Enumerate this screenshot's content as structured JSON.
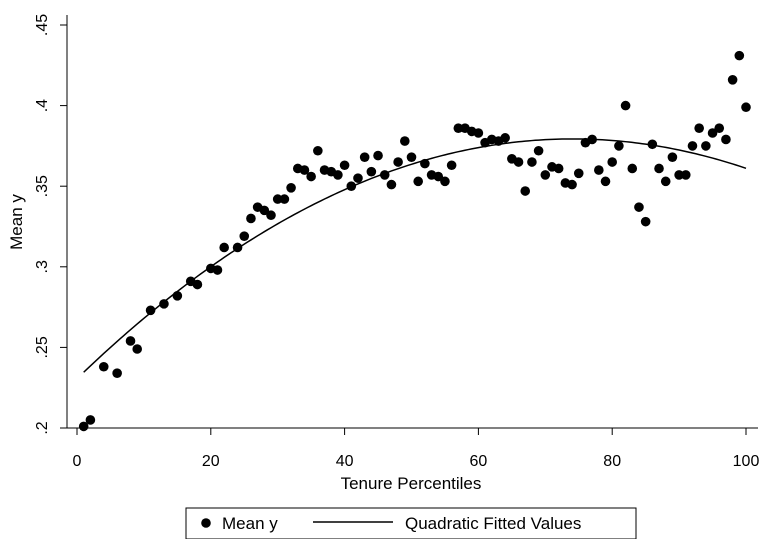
{
  "chart_data": {
    "type": "scatter",
    "xlabel": "Tenure Percentiles",
    "ylabel": "Mean y",
    "xlim": [
      0,
      100
    ],
    "ylim": [
      0.2,
      0.45
    ],
    "x_ticks": [
      {
        "value": 0,
        "label": "0"
      },
      {
        "value": 20,
        "label": "20"
      },
      {
        "value": 40,
        "label": "40"
      },
      {
        "value": 60,
        "label": "60"
      },
      {
        "value": 80,
        "label": "80"
      },
      {
        "value": 100,
        "label": "100"
      }
    ],
    "y_ticks": [
      {
        "value": 0.2,
        "label": ".2"
      },
      {
        "value": 0.25,
        "label": ".25"
      },
      {
        "value": 0.3,
        "label": ".3"
      },
      {
        "value": 0.35,
        "label": ".35"
      },
      {
        "value": 0.4,
        "label": ".4"
      },
      {
        "value": 0.45,
        "label": ".45"
      }
    ],
    "grid": false,
    "legend_position": "bottom",
    "series": [
      {
        "name": "Mean y",
        "type": "scatter",
        "color": "#000000",
        "points": [
          [
            1,
            0.201
          ],
          [
            2,
            0.205
          ],
          [
            4,
            0.238
          ],
          [
            6,
            0.234
          ],
          [
            8,
            0.254
          ],
          [
            9,
            0.249
          ],
          [
            11,
            0.273
          ],
          [
            13,
            0.277
          ],
          [
            15,
            0.282
          ],
          [
            17,
            0.291
          ],
          [
            18,
            0.289
          ],
          [
            20,
            0.299
          ],
          [
            21,
            0.298
          ],
          [
            22,
            0.312
          ],
          [
            24,
            0.312
          ],
          [
            25,
            0.319
          ],
          [
            26,
            0.33
          ],
          [
            27,
            0.337
          ],
          [
            28,
            0.335
          ],
          [
            29,
            0.332
          ],
          [
            30,
            0.342
          ],
          [
            31,
            0.342
          ],
          [
            32,
            0.349
          ],
          [
            33,
            0.361
          ],
          [
            34,
            0.36
          ],
          [
            35,
            0.356
          ],
          [
            36,
            0.372
          ],
          [
            37,
            0.36
          ],
          [
            38,
            0.359
          ],
          [
            39,
            0.357
          ],
          [
            40,
            0.363
          ],
          [
            41,
            0.35
          ],
          [
            42,
            0.355
          ],
          [
            43,
            0.368
          ],
          [
            44,
            0.359
          ],
          [
            45,
            0.369
          ],
          [
            46,
            0.357
          ],
          [
            47,
            0.351
          ],
          [
            48,
            0.365
          ],
          [
            49,
            0.378
          ],
          [
            50,
            0.368
          ],
          [
            51,
            0.353
          ],
          [
            52,
            0.364
          ],
          [
            53,
            0.357
          ],
          [
            54,
            0.356
          ],
          [
            55,
            0.353
          ],
          [
            56,
            0.363
          ],
          [
            57,
            0.386
          ],
          [
            58,
            0.386
          ],
          [
            59,
            0.384
          ],
          [
            60,
            0.383
          ],
          [
            61,
            0.377
          ],
          [
            62,
            0.379
          ],
          [
            63,
            0.378
          ],
          [
            64,
            0.38
          ],
          [
            65,
            0.367
          ],
          [
            66,
            0.365
          ],
          [
            67,
            0.347
          ],
          [
            68,
            0.365
          ],
          [
            69,
            0.372
          ],
          [
            70,
            0.357
          ],
          [
            71,
            0.362
          ],
          [
            72,
            0.361
          ],
          [
            73,
            0.352
          ],
          [
            74,
            0.351
          ],
          [
            75,
            0.358
          ],
          [
            76,
            0.377
          ],
          [
            77,
            0.379
          ],
          [
            78,
            0.36
          ],
          [
            79,
            0.353
          ],
          [
            80,
            0.365
          ],
          [
            81,
            0.375
          ],
          [
            82,
            0.4
          ],
          [
            83,
            0.361
          ],
          [
            84,
            0.337
          ],
          [
            85,
            0.328
          ],
          [
            86,
            0.376
          ],
          [
            87,
            0.361
          ],
          [
            88,
            0.353
          ],
          [
            89,
            0.368
          ],
          [
            90,
            0.357
          ],
          [
            91,
            0.357
          ],
          [
            92,
            0.375
          ],
          [
            93,
            0.386
          ],
          [
            94,
            0.375
          ],
          [
            95,
            0.383
          ],
          [
            96,
            0.386
          ],
          [
            97,
            0.379
          ],
          [
            98,
            0.416
          ],
          [
            99,
            0.431
          ],
          [
            100,
            0.399
          ]
        ]
      },
      {
        "name": "Quadratic Fitted Values",
        "type": "line",
        "color": "#000000",
        "quadratic": {
          "a": -2.71e-05,
          "b": 0.004015,
          "c": 0.2306
        },
        "x_range": [
          1,
          100
        ]
      }
    ]
  }
}
